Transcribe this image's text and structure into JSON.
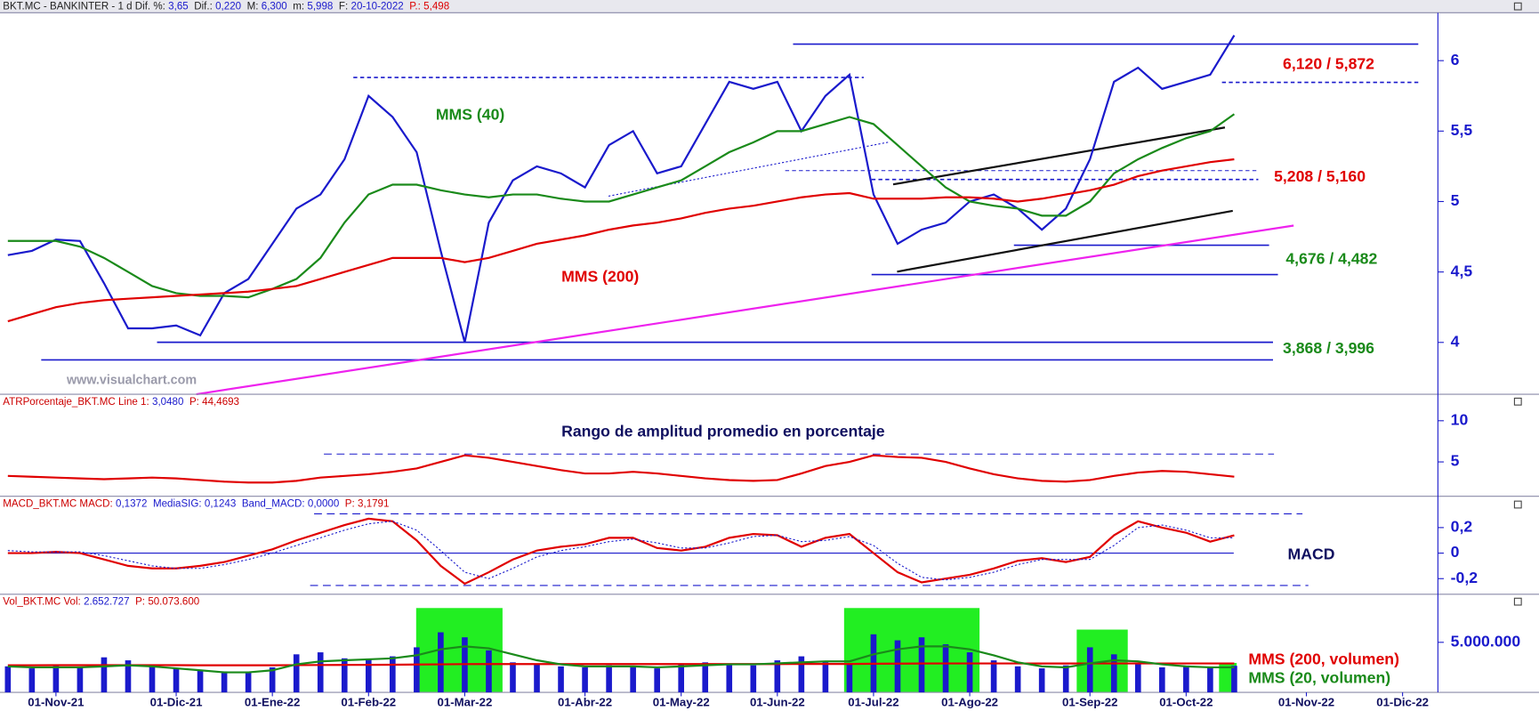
{
  "chart_data": [
    {
      "type": "line",
      "header": [
        {
          "text": "BKT.MC - BANKINTER -  1 d  Dif. %:",
          "color": "#222222"
        },
        {
          "text": "3,65",
          "color": "#1a1acc"
        },
        {
          "text": " Dif.:",
          "color": "#222222"
        },
        {
          "text": "0,220",
          "color": "#1a1acc"
        },
        {
          "text": " M:",
          "color": "#222222"
        },
        {
          "text": "6,300",
          "color": "#1a1acc"
        },
        {
          "text": " m:",
          "color": "#222222"
        },
        {
          "text": "5,998",
          "color": "#1a1acc"
        },
        {
          "text": " F:",
          "color": "#222222"
        },
        {
          "text": "20-10-2022",
          "color": "#1a1acc"
        },
        {
          "text": " P.:",
          "color": "#dd0000"
        },
        {
          "text": "5,498",
          "color": "#dd0000"
        }
      ],
      "watermark": "www.visualchart.com",
      "annotations": [
        {
          "text": "MMS (40)",
          "color": "#1a8a1a"
        },
        {
          "text": "MMS (200)",
          "color": "#e00000"
        },
        {
          "text": "6,120 /  5,872",
          "color": "#e00000"
        },
        {
          "text": "5,208 / 5,160",
          "color": "#e00000"
        },
        {
          "text": "4,676 / 4,482",
          "color": "#1a8a1a"
        },
        {
          "text": "3,868 / 3,996",
          "color": "#1a8a1a"
        }
      ],
      "ylim": [
        3.646,
        6.34
      ],
      "yticks": [
        {
          "value": 6,
          "label": "6"
        },
        {
          "value": 5.5,
          "label": "5,5"
        },
        {
          "value": 5,
          "label": "5"
        },
        {
          "value": 4.5,
          "label": "4,5"
        },
        {
          "value": 4,
          "label": "4"
        }
      ],
      "series": [
        {
          "color": "#1a1acc",
          "values": [
            4.62,
            4.65,
            4.73,
            4.72,
            4.42,
            4.1,
            4.1,
            4.12,
            4.05,
            4.35,
            4.45,
            4.7,
            4.95,
            5.05,
            5.3,
            5.75,
            5.6,
            5.35,
            4.65,
            4.0,
            4.85,
            5.15,
            5.25,
            5.2,
            5.1,
            5.4,
            5.5,
            5.2,
            5.25,
            5.55,
            5.85,
            5.8,
            5.85,
            5.5,
            5.75,
            5.9,
            5.05,
            4.7,
            4.8,
            4.85,
            5.0,
            5.05,
            4.95,
            4.8,
            4.95,
            5.3,
            5.85,
            5.95,
            5.8,
            5.85,
            5.9,
            6.18,
            null,
            null,
            null,
            null,
            null,
            null,
            null,
            null
          ]
        },
        {
          "color": "#1a8a1a",
          "values": [
            4.72,
            4.72,
            4.72,
            4.68,
            4.6,
            4.5,
            4.4,
            4.35,
            4.33,
            4.33,
            4.32,
            4.38,
            4.45,
            4.6,
            4.85,
            5.05,
            5.12,
            5.12,
            5.08,
            5.05,
            5.03,
            5.05,
            5.05,
            5.02,
            5.0,
            5.0,
            5.05,
            5.1,
            5.15,
            5.25,
            5.35,
            5.42,
            5.5,
            5.5,
            5.55,
            5.6,
            5.55,
            5.4,
            5.25,
            5.1,
            5.0,
            4.97,
            4.95,
            4.9,
            4.9,
            5.0,
            5.2,
            5.3,
            5.38,
            5.45,
            5.5,
            5.62,
            null,
            null,
            null,
            null,
            null,
            null,
            null,
            null
          ]
        },
        {
          "color": "#e00000",
          "values": [
            4.15,
            4.2,
            4.25,
            4.28,
            4.3,
            4.31,
            4.32,
            4.33,
            4.34,
            4.35,
            4.36,
            4.38,
            4.4,
            4.45,
            4.5,
            4.55,
            4.6,
            4.6,
            4.6,
            4.57,
            4.6,
            4.65,
            4.7,
            4.73,
            4.76,
            4.8,
            4.83,
            4.85,
            4.88,
            4.92,
            4.95,
            4.97,
            5.0,
            5.03,
            5.05,
            5.06,
            5.02,
            5.02,
            5.02,
            5.03,
            5.03,
            5.02,
            5.0,
            5.02,
            5.05,
            5.08,
            5.12,
            5.18,
            5.22,
            5.25,
            5.28,
            5.3,
            null,
            null,
            null,
            null,
            null,
            null,
            null,
            null
          ]
        }
      ]
    },
    {
      "type": "line",
      "header": [
        {
          "text": "ATRPorcentaje_BKT.MC  Line 1:",
          "color": "#cc0000"
        },
        {
          "text": "3,0480",
          "color": "#1a1acc"
        },
        {
          "text": " P:",
          "color": "#cc0000"
        },
        {
          "text": "44,4693",
          "color": "#cc0000"
        }
      ],
      "title": "Rango de amplitud promedio en porcentaje",
      "ylim": [
        0.95,
        13.1
      ],
      "yticks": [
        10,
        5
      ],
      "series": [
        {
          "color": "#e00000",
          "values": [
            3.3,
            3.2,
            3.1,
            3.0,
            2.9,
            3.0,
            3.1,
            3.0,
            2.8,
            2.6,
            2.5,
            2.5,
            2.7,
            3.1,
            3.3,
            3.5,
            3.8,
            4.2,
            5.0,
            5.8,
            5.5,
            5.0,
            4.5,
            4.0,
            3.6,
            3.6,
            3.8,
            3.6,
            3.3,
            3.0,
            2.8,
            2.7,
            2.8,
            3.6,
            4.5,
            5.0,
            5.8,
            5.6,
            5.5,
            5.0,
            4.2,
            3.5,
            3.0,
            2.7,
            2.6,
            2.8,
            3.3,
            3.7,
            3.9,
            3.8,
            3.5,
            3.2,
            null,
            null,
            null,
            null,
            null,
            null,
            null,
            null
          ]
        }
      ]
    },
    {
      "type": "line",
      "header": [
        {
          "text": "MACD_BKT.MC  MACD:",
          "color": "#cc0000"
        },
        {
          "text": "0,1372",
          "color": "#1a1acc"
        },
        {
          "text": " MediaSIG:",
          "color": "#1a1acc"
        },
        {
          "text": "0,1243",
          "color": "#1a1acc"
        },
        {
          "text": " Band_MACD:",
          "color": "#1a1acc"
        },
        {
          "text": "0,0000",
          "color": "#1a1acc"
        },
        {
          "text": " P:",
          "color": "#cc0000"
        },
        {
          "text": "3,1791",
          "color": "#cc0000"
        }
      ],
      "title": "MACD",
      "ylim": [
        -0.315,
        0.438
      ],
      "yticks": [
        {
          "value": 0.2,
          "label": "0,2"
        },
        0,
        {
          "value": -0.2,
          "label": "-0,2"
        }
      ],
      "series": [
        {
          "color": "#e00000",
          "values": [
            0.0,
            0.0,
            0.01,
            0.0,
            -0.05,
            -0.1,
            -0.12,
            -0.12,
            -0.1,
            -0.07,
            -0.02,
            0.03,
            0.1,
            0.16,
            0.22,
            0.27,
            0.25,
            0.1,
            -0.1,
            -0.24,
            -0.15,
            -0.05,
            0.02,
            0.05,
            0.07,
            0.12,
            0.12,
            0.04,
            0.02,
            0.05,
            0.12,
            0.15,
            0.14,
            0.05,
            0.12,
            0.15,
            0.0,
            -0.15,
            -0.23,
            -0.2,
            -0.17,
            -0.12,
            -0.06,
            -0.04,
            -0.07,
            -0.03,
            0.14,
            0.25,
            0.2,
            0.16,
            0.09,
            0.14,
            null,
            null,
            null,
            null,
            null,
            null,
            null,
            null
          ]
        },
        {
          "color": "#1a1acc",
          "dashed": true,
          "values": [
            0.02,
            0.01,
            0.01,
            0.01,
            -0.02,
            -0.06,
            -0.1,
            -0.12,
            -0.12,
            -0.09,
            -0.05,
            0.0,
            0.06,
            0.12,
            0.18,
            0.23,
            0.25,
            0.18,
            0.02,
            -0.15,
            -0.2,
            -0.12,
            -0.03,
            0.02,
            0.05,
            0.09,
            0.11,
            0.08,
            0.04,
            0.04,
            0.08,
            0.13,
            0.14,
            0.09,
            0.1,
            0.13,
            0.06,
            -0.08,
            -0.19,
            -0.21,
            -0.19,
            -0.15,
            -0.09,
            -0.05,
            -0.05,
            -0.05,
            0.06,
            0.2,
            0.22,
            0.18,
            0.12,
            0.12,
            null,
            null,
            null,
            null,
            null,
            null,
            null,
            null
          ]
        }
      ]
    },
    {
      "type": "bar",
      "header": [
        {
          "text": "Vol_BKT.MC  Vol:",
          "color": "#cc0000"
        },
        {
          "text": "2.652.727",
          "color": "#1a1acc"
        },
        {
          "text": " P:",
          "color": "#cc0000"
        },
        {
          "text": "50.073.600",
          "color": "#cc0000"
        }
      ],
      "annotations": [
        {
          "text": "MMS (200, volumen)",
          "color": "#e00000"
        },
        {
          "text": "MMS (20, volumen)",
          "color": "#1a8a1a"
        }
      ],
      "categories": [
        null,
        null,
        "01-Nov-21",
        null,
        null,
        null,
        null,
        "01-Dic-21",
        null,
        null,
        null,
        "01-Ene-22",
        null,
        null,
        null,
        "01-Feb-22",
        null,
        null,
        null,
        "01-Mar-22",
        null,
        null,
        null,
        null,
        "01-Abr-22",
        null,
        null,
        null,
        "01-May-22",
        null,
        null,
        null,
        "01-Jun-22",
        null,
        null,
        null,
        "01-Jul-22",
        null,
        null,
        null,
        "01-Ago-22",
        null,
        null,
        null,
        null,
        "01-Sep-22",
        null,
        null,
        null,
        "01-Oct-22",
        null,
        null,
        null,
        null,
        "01-Nov-22",
        null,
        null,
        null,
        "01-Dic-22",
        null
      ],
      "ylim": [
        0,
        9700000
      ],
      "yticks": [
        {
          "value": 5000000,
          "label": "5.000.000"
        }
      ],
      "series": [
        {
          "color": "#1a1acc",
          "values": [
            2600000,
            2400000,
            2800000,
            2500000,
            3500000,
            3200000,
            2600000,
            2400000,
            2200000,
            2100000,
            2000000,
            2500000,
            3800000,
            4000000,
            3400000,
            3300000,
            3600000,
            4500000,
            6000000,
            5500000,
            4200000,
            3000000,
            2800000,
            2600000,
            2500000,
            2700000,
            2600000,
            2400000,
            2900000,
            3000000,
            2800000,
            2700000,
            3200000,
            3600000,
            3000000,
            2800000,
            5800000,
            5200000,
            5500000,
            4800000,
            4000000,
            3200000,
            2600000,
            2400000,
            2700000,
            4500000,
            3800000,
            2900000,
            2500000,
            2600000,
            2500000,
            2650000,
            null,
            null,
            null,
            null,
            null,
            null,
            null,
            null
          ]
        },
        {
          "type": "line",
          "color": "#e00000",
          "values": [
            2700000,
            2700000,
            2710000,
            2710000,
            2720000,
            2720000,
            2720000,
            2710000,
            2700000,
            2700000,
            2700000,
            2700000,
            2720000,
            2730000,
            2740000,
            2750000,
            2760000,
            2780000,
            2800000,
            2820000,
            2830000,
            2830000,
            2830000,
            2830000,
            2830000,
            2830000,
            2830000,
            2830000,
            2830000,
            2830000,
            2830000,
            2830000,
            2830000,
            2840000,
            2840000,
            2840000,
            2860000,
            2870000,
            2880000,
            2890000,
            2890000,
            2890000,
            2890000,
            2880000,
            2880000,
            2890000,
            2890000,
            2890000,
            2890000,
            2890000,
            2890000,
            2890000,
            null,
            null,
            null,
            null,
            null,
            null,
            null,
            null
          ]
        },
        {
          "type": "line",
          "color": "#1a8a1a",
          "values": [
            2600000,
            2500000,
            2500000,
            2500000,
            2600000,
            2700000,
            2600000,
            2400000,
            2200000,
            2000000,
            2000000,
            2200000,
            2800000,
            3100000,
            3200000,
            3300000,
            3400000,
            3700000,
            4300000,
            4600000,
            4400000,
            3800000,
            3200000,
            2800000,
            2600000,
            2600000,
            2600000,
            2500000,
            2600000,
            2700000,
            2800000,
            2800000,
            2900000,
            3000000,
            3100000,
            3100000,
            3800000,
            4300000,
            4600000,
            4600000,
            4300000,
            3700000,
            3000000,
            2600000,
            2500000,
            2900000,
            3200000,
            3100000,
            2800000,
            2600000,
            2500000,
            2500000,
            null,
            null,
            null,
            null,
            null,
            null,
            null,
            null
          ]
        }
      ]
    }
  ]
}
